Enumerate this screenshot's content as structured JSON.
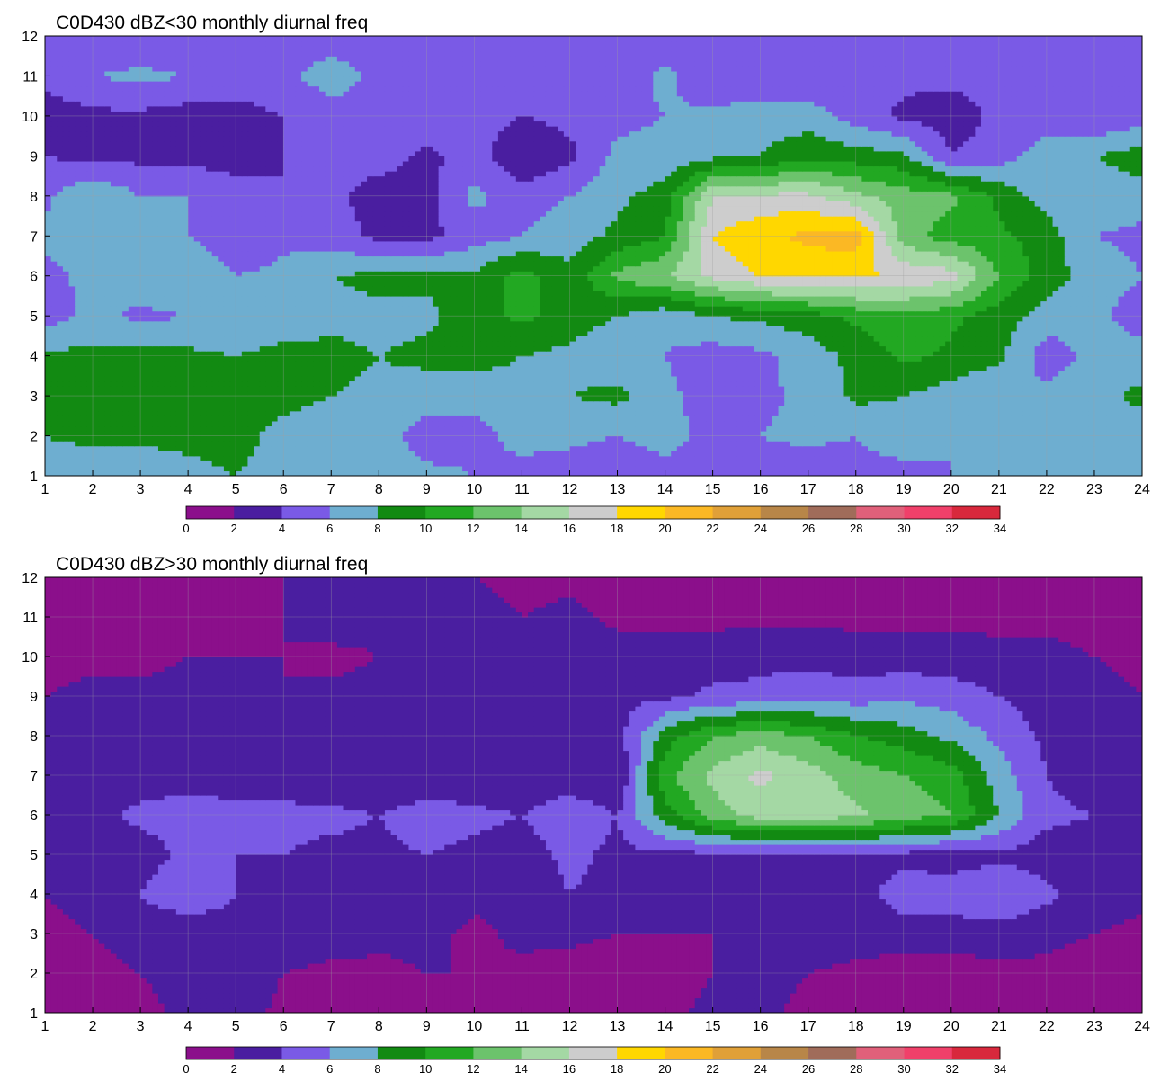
{
  "chart_data": [
    {
      "type": "contour",
      "title": "C0D430 dBZ<30 monthly diurnal freq",
      "xlabel": "",
      "ylabel": "",
      "xlim": [
        1,
        24
      ],
      "ylim": [
        1,
        12
      ],
      "x_ticks": [
        "1",
        "2",
        "3",
        "4",
        "5",
        "6",
        "7",
        "8",
        "9",
        "10",
        "11",
        "12",
        "13",
        "14",
        "15",
        "16",
        "17",
        "18",
        "19",
        "20",
        "21",
        "22",
        "23",
        "24"
      ],
      "y_ticks": [
        "1",
        "2",
        "3",
        "4",
        "5",
        "6",
        "7",
        "8",
        "9",
        "10",
        "11",
        "12"
      ],
      "colorbar": {
        "levels": [
          "0",
          "2",
          "4",
          "6",
          "8",
          "10",
          "12",
          "14",
          "16",
          "18",
          "20",
          "22",
          "24",
          "26",
          "28",
          "30",
          "32",
          "34"
        ],
        "colors": [
          "#8b0f8b",
          "#4a1ea0",
          "#7a5ae6",
          "#6eaed0",
          "#128a12",
          "#22a822",
          "#6cc36c",
          "#a4d8a4",
          "#cdcdcd",
          "#ffd700",
          "#fbb824",
          "#e0a038",
          "#b88648",
          "#a06c5a",
          "#e0607a",
          "#f0406a",
          "#d8283c"
        ]
      },
      "grid": true,
      "z": [
        [
          7.0,
          6.5,
          6.5,
          7.5,
          8.0,
          7.5,
          7.0,
          7.0,
          6.5,
          6.0,
          5.5,
          5.0,
          4.0,
          5.0,
          5.5,
          5.0,
          4.5,
          5.0,
          5.0,
          6.0,
          6.5,
          7.0,
          7.0,
          7.0
        ],
        [
          8.0,
          8.5,
          8.5,
          8.5,
          8.5,
          7.5,
          7.0,
          7.0,
          5.0,
          5.5,
          6.5,
          6.5,
          6.0,
          7.0,
          5.0,
          6.0,
          6.5,
          6.0,
          7.5,
          6.0,
          8.0,
          7.5,
          7.0,
          7.0
        ],
        [
          9.0,
          8.5,
          8.0,
          8.5,
          9.0,
          8.5,
          8.0,
          7.5,
          7.0,
          6.5,
          7.0,
          8.0,
          8.5,
          6.5,
          5.0,
          5.5,
          6.5,
          8.5,
          8.0,
          7.0,
          6.0,
          6.5,
          7.5,
          8.5
        ],
        [
          8.5,
          8.5,
          9.0,
          8.5,
          8.0,
          8.5,
          8.5,
          8.0,
          8.5,
          9.0,
          8.0,
          7.5,
          6.5,
          6.0,
          5.0,
          5.5,
          7.0,
          8.5,
          10.5,
          9.5,
          8.5,
          5.0,
          6.5,
          7.0
        ],
        [
          5.0,
          6.5,
          5.5,
          6.0,
          6.5,
          7.0,
          7.5,
          7.5,
          7.5,
          9.0,
          10.5,
          9.0,
          8.0,
          6.5,
          8.0,
          8.5,
          9.0,
          10.5,
          11.5,
          10.5,
          9.0,
          7.0,
          6.5,
          5.0
        ],
        [
          5.5,
          6.5,
          7.5,
          7.5,
          6.0,
          6.5,
          8.0,
          8.5,
          8.5,
          8.5,
          11.0,
          8.5,
          12.5,
          14.0,
          16.5,
          18.0,
          18.5,
          18.5,
          17.5,
          17.0,
          12.0,
          9.0,
          7.0,
          6.0
        ],
        [
          6.5,
          7.0,
          6.5,
          6.0,
          4.5,
          5.5,
          5.0,
          3.5,
          3.5,
          5.0,
          6.0,
          7.0,
          8.5,
          10.0,
          18.0,
          19.5,
          20.5,
          21.0,
          13.0,
          11.0,
          10.5,
          9.0,
          6.0,
          5.5
        ],
        [
          5.5,
          8.0,
          6.0,
          6.0,
          5.0,
          4.0,
          4.5,
          3.0,
          3.0,
          6.5,
          5.0,
          6.0,
          7.5,
          9.0,
          16.0,
          16.5,
          16.5,
          14.5,
          13.0,
          12.5,
          9.5,
          7.0,
          7.0,
          7.0
        ],
        [
          4.0,
          3.5,
          3.5,
          3.5,
          3.0,
          4.0,
          4.5,
          5.0,
          3.5,
          5.0,
          2.0,
          3.5,
          6.5,
          6.5,
          7.5,
          8.0,
          9.5,
          9.0,
          8.5,
          4.0,
          5.0,
          7.0,
          8.0,
          9.0
        ],
        [
          2.5,
          3.5,
          3.5,
          3.0,
          3.0,
          4.0,
          5.0,
          5.5,
          5.5,
          5.0,
          4.0,
          4.5,
          5.5,
          6.0,
          6.5,
          7.0,
          7.0,
          5.0,
          3.5,
          3.0,
          4.5,
          5.0,
          4.0,
          5.0
        ],
        [
          5.0,
          6.0,
          6.5,
          6.0,
          5.5,
          5.5,
          7.0,
          5.5,
          5.0,
          5.0,
          4.5,
          5.0,
          4.5,
          6.5,
          4.5,
          4.5,
          4.5,
          5.0,
          4.5,
          4.5,
          4.5,
          4.5,
          4.5,
          4.5
        ],
        [
          4.5,
          4.5,
          4.5,
          4.5,
          4.5,
          4.5,
          5.0,
          4.5,
          5.0,
          4.5,
          4.5,
          4.0,
          4.5,
          4.5,
          4.5,
          4.5,
          4.5,
          4.5,
          4.5,
          4.0,
          4.0,
          4.5,
          4.0,
          4.0
        ]
      ]
    },
    {
      "type": "contour",
      "title": "C0D430 dBZ>30 monthly diurnal freq",
      "xlabel": "",
      "ylabel": "",
      "xlim": [
        1,
        24
      ],
      "ylim": [
        1,
        12
      ],
      "x_ticks": [
        "1",
        "2",
        "3",
        "4",
        "5",
        "6",
        "7",
        "8",
        "9",
        "10",
        "11",
        "12",
        "13",
        "14",
        "15",
        "16",
        "17",
        "18",
        "19",
        "20",
        "21",
        "22",
        "23",
        "24"
      ],
      "y_ticks": [
        "1",
        "2",
        "3",
        "4",
        "5",
        "6",
        "7",
        "8",
        "9",
        "10",
        "11",
        "12"
      ],
      "colorbar": {
        "levels": [
          "0",
          "2",
          "4",
          "6",
          "8",
          "10",
          "12",
          "14",
          "16",
          "18",
          "20",
          "22",
          "24",
          "26",
          "28",
          "30",
          "32",
          "34"
        ],
        "colors": [
          "#8b0f8b",
          "#4a1ea0",
          "#7a5ae6",
          "#6eaed0",
          "#128a12",
          "#22a822",
          "#6cc36c",
          "#a4d8a4",
          "#cdcdcd",
          "#ffd700",
          "#fbb824",
          "#e0a038",
          "#b88648",
          "#a06c5a",
          "#e0607a",
          "#f0406a",
          "#d8283c"
        ]
      },
      "grid": true,
      "z": [
        [
          1.0,
          1.5,
          1.5,
          2.5,
          3.0,
          1.5,
          1.0,
          1.0,
          1.5,
          1.0,
          1.0,
          1.0,
          1.5,
          1.5,
          2.5,
          2.5,
          1.5,
          1.0,
          1.0,
          1.0,
          1.0,
          1.0,
          1.0,
          1.0
        ],
        [
          1.0,
          1.5,
          2.0,
          2.5,
          3.0,
          2.0,
          1.5,
          1.5,
          2.0,
          2.0,
          1.5,
          1.0,
          1.0,
          1.0,
          2.0,
          2.5,
          2.0,
          1.5,
          1.0,
          1.0,
          1.5,
          1.5,
          1.0,
          1.0
        ],
        [
          1.5,
          2.0,
          2.5,
          2.0,
          3.0,
          3.0,
          3.0,
          2.5,
          2.5,
          1.5,
          2.5,
          2.5,
          2.0,
          2.0,
          2.0,
          3.0,
          3.0,
          3.0,
          3.0,
          3.0,
          3.0,
          2.5,
          2.0,
          1.5
        ],
        [
          2.0,
          2.5,
          4.0,
          6.0,
          4.0,
          3.5,
          3.5,
          3.5,
          3.5,
          2.5,
          2.5,
          4.0,
          3.5,
          3.0,
          3.0,
          3.5,
          3.5,
          3.0,
          5.0,
          5.0,
          6.0,
          4.5,
          3.0,
          2.5
        ],
        [
          2.5,
          2.5,
          3.0,
          4.5,
          4.0,
          4.0,
          3.5,
          3.5,
          4.0,
          3.5,
          3.0,
          4.5,
          3.5,
          3.5,
          3.5,
          3.5,
          3.5,
          3.5,
          3.5,
          3.0,
          3.5,
          3.0,
          3.0,
          2.5
        ],
        [
          3.0,
          3.5,
          4.5,
          5.0,
          5.0,
          4.5,
          4.5,
          4.0,
          5.0,
          4.5,
          4.0,
          5.5,
          4.0,
          9.0,
          13.0,
          15.0,
          15.0,
          14.5,
          13.0,
          12.0,
          8.0,
          4.5,
          4.0,
          3.0
        ],
        [
          2.5,
          3.0,
          3.0,
          3.0,
          2.5,
          3.0,
          2.5,
          2.0,
          2.5,
          2.5,
          2.5,
          2.5,
          2.0,
          11.5,
          14.5,
          16.5,
          15.0,
          13.0,
          12.0,
          11.0,
          7.0,
          4.0,
          3.0,
          2.5
        ],
        [
          2.0,
          2.5,
          2.5,
          3.0,
          4.0,
          2.5,
          2.5,
          2.5,
          2.5,
          2.5,
          3.0,
          3.0,
          3.0,
          9.0,
          12.0,
          13.0,
          12.0,
          10.0,
          9.0,
          7.5,
          5.5,
          3.5,
          2.5,
          2.0
        ],
        [
          2.0,
          2.5,
          2.5,
          2.5,
          2.0,
          2.0,
          2.5,
          2.5,
          2.5,
          3.0,
          3.0,
          3.0,
          3.5,
          3.5,
          4.5,
          4.5,
          5.0,
          5.0,
          5.5,
          5.0,
          4.0,
          3.0,
          2.5,
          2.0
        ],
        [
          1.5,
          1.5,
          1.5,
          2.0,
          2.0,
          2.0,
          1.5,
          2.0,
          2.5,
          3.0,
          3.0,
          3.0,
          3.0,
          3.0,
          3.0,
          3.5,
          3.5,
          3.0,
          3.0,
          3.0,
          2.5,
          2.5,
          2.0,
          1.5
        ],
        [
          1.5,
          1.5,
          1.5,
          1.5,
          1.5,
          2.0,
          3.0,
          2.5,
          2.5,
          2.5,
          2.0,
          2.5,
          1.5,
          1.5,
          1.5,
          1.5,
          1.5,
          1.5,
          1.5,
          1.5,
          1.5,
          1.5,
          1.5,
          1.5
        ],
        [
          1.5,
          1.5,
          1.5,
          1.5,
          1.5,
          2.0,
          2.5,
          2.5,
          2.5,
          2.0,
          1.5,
          1.5,
          1.5,
          1.5,
          1.5,
          1.5,
          1.5,
          1.5,
          1.5,
          1.5,
          1.5,
          1.5,
          1.5,
          1.5
        ]
      ]
    }
  ]
}
